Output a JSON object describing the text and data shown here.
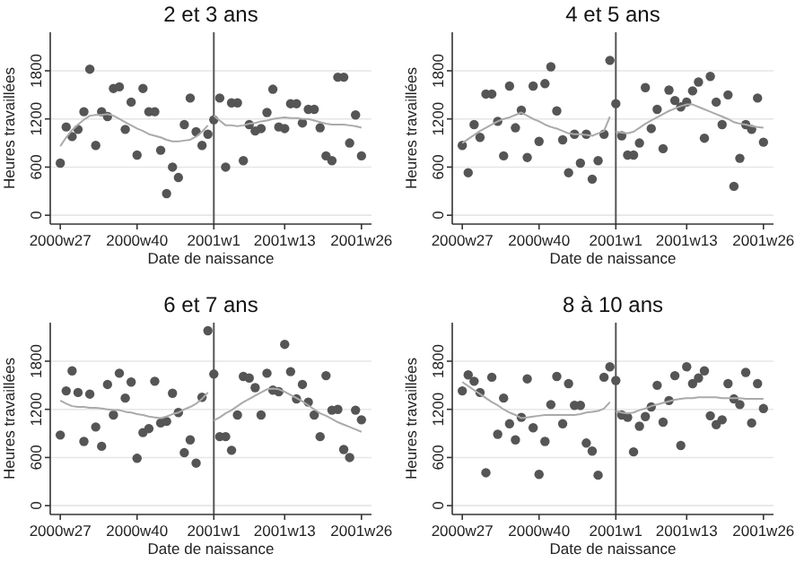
{
  "chart_data": [
    {
      "type": "scatter",
      "title": "2 et 3 ans",
      "xlabel": "Date de naissance",
      "ylabel": "Heures travaillées",
      "categories": [
        "2000w27",
        null,
        null,
        null,
        null,
        null,
        null,
        null,
        null,
        null,
        null,
        null,
        null,
        "2000w40",
        null,
        null,
        null,
        null,
        null,
        null,
        null,
        null,
        null,
        null,
        null,
        null,
        "2001w1",
        null,
        null,
        null,
        null,
        null,
        null,
        null,
        null,
        null,
        null,
        null,
        "2001w13",
        null,
        null,
        null,
        null,
        null,
        null,
        null,
        null,
        null,
        null,
        null,
        null,
        "2001w26"
      ],
      "ylim": [
        -110,
        2280
      ],
      "yticks": [
        0,
        600,
        1200,
        1800
      ],
      "grid": "y",
      "ref_lines": [
        {
          "axis": "x",
          "value": "2001w1",
          "color": "#555555"
        }
      ],
      "series": [
        {
          "color": "#555555",
          "marker": "circle",
          "values": [
            650,
            1100,
            980,
            1070,
            1290,
            1820,
            870,
            1290,
            1230,
            1580,
            1600,
            1070,
            1410,
            750,
            1580,
            1290,
            1290,
            810,
            270,
            600,
            470,
            1130,
            1460,
            1040,
            870,
            1010,
            1190,
            1460,
            600,
            1400,
            1400,
            680,
            1130,
            1050,
            1080,
            1280,
            1570,
            1100,
            1080,
            1390,
            1390,
            1150,
            1320,
            1320,
            1090,
            740,
            680,
            1720,
            1720,
            900,
            1250,
            740
          ]
        },
        {
          "type": "line",
          "color": "#aaaaaa",
          "marker": "none",
          "values": [
            860,
            970,
            1060,
            1130,
            1190,
            1240,
            1250,
            1250,
            1260,
            1240,
            1200,
            1160,
            1120,
            1080,
            1050,
            1010,
            990,
            970,
            940,
            920,
            920,
            930,
            940,
            980,
            1040,
            1120,
            null,
            null,
            null,
            null,
            null,
            null,
            null,
            null,
            null,
            null,
            null,
            null,
            null,
            null,
            null,
            null,
            null,
            null,
            null,
            null,
            null,
            null,
            null,
            null,
            null,
            null
          ]
        },
        {
          "type": "line",
          "color": "#aaaaaa",
          "marker": "none",
          "values": [
            null,
            null,
            null,
            null,
            null,
            null,
            null,
            null,
            null,
            null,
            null,
            null,
            null,
            null,
            null,
            null,
            null,
            null,
            null,
            null,
            null,
            null,
            null,
            null,
            null,
            null,
            1240,
            1180,
            1120,
            1120,
            1110,
            1120,
            1140,
            1150,
            1170,
            1180,
            1200,
            1210,
            1220,
            1210,
            1210,
            1200,
            1200,
            1180,
            1160,
            1140,
            1130,
            1130,
            1130,
            1120,
            1110,
            1090
          ]
        }
      ]
    },
    {
      "type": "scatter",
      "title": "4 et 5 ans",
      "xlabel": "Date de naissance",
      "ylabel": "Heures travaillées",
      "categories": [
        "2000w27",
        null,
        null,
        null,
        null,
        null,
        null,
        null,
        null,
        null,
        null,
        null,
        null,
        "2000w40",
        null,
        null,
        null,
        null,
        null,
        null,
        null,
        null,
        null,
        null,
        null,
        null,
        "2001w1",
        null,
        null,
        null,
        null,
        null,
        null,
        null,
        null,
        null,
        null,
        null,
        "2001w13",
        null,
        null,
        null,
        null,
        null,
        null,
        null,
        null,
        null,
        null,
        null,
        null,
        "2001w26"
      ],
      "ylim": [
        -110,
        2280
      ],
      "yticks": [
        0,
        600,
        1200,
        1800
      ],
      "grid": "y",
      "ref_lines": [
        {
          "axis": "x",
          "value": "2001w1",
          "color": "#555555"
        }
      ],
      "series": [
        {
          "color": "#555555",
          "marker": "circle",
          "values": [
            870,
            530,
            1130,
            970,
            1510,
            1510,
            1170,
            740,
            1610,
            1090,
            1310,
            720,
            1610,
            920,
            1640,
            1850,
            1300,
            940,
            530,
            1010,
            650,
            1010,
            450,
            680,
            1010,
            1930,
            1390,
            990,
            750,
            750,
            900,
            1590,
            1080,
            1320,
            830,
            1560,
            1430,
            1350,
            1410,
            1550,
            1660,
            960,
            1730,
            1410,
            1130,
            1500,
            360,
            710,
            1130,
            1070,
            1460,
            910
          ]
        },
        {
          "type": "line",
          "color": "#aaaaaa",
          "marker": "none",
          "values": [
            900,
            950,
            1000,
            1050,
            1090,
            1130,
            1170,
            1200,
            1220,
            1250,
            1280,
            1240,
            1200,
            1170,
            1130,
            1100,
            1080,
            1050,
            1020,
            1010,
            1010,
            1000,
            990,
            1020,
            1050,
            1230,
            null,
            null,
            null,
            null,
            null,
            null,
            null,
            null,
            null,
            null,
            null,
            null,
            null,
            null,
            null,
            null,
            null,
            null,
            null,
            null,
            null,
            null,
            null,
            null,
            null,
            null
          ]
        },
        {
          "type": "line",
          "color": "#aaaaaa",
          "marker": "none",
          "values": [
            null,
            null,
            null,
            null,
            null,
            null,
            null,
            null,
            null,
            null,
            null,
            null,
            null,
            null,
            null,
            null,
            null,
            null,
            null,
            null,
            null,
            null,
            null,
            null,
            null,
            null,
            1040,
            1030,
            1020,
            1040,
            1090,
            1140,
            1180,
            1220,
            1260,
            1300,
            1330,
            1360,
            1380,
            1380,
            1350,
            1320,
            1290,
            1260,
            1230,
            1200,
            1160,
            1140,
            1130,
            1110,
            1100,
            1090
          ]
        }
      ]
    },
    {
      "type": "scatter",
      "title": "6 et 7 ans",
      "xlabel": "Date de naissance",
      "ylabel": "Heures travaillées",
      "categories": [
        "2000w27",
        null,
        null,
        null,
        null,
        null,
        null,
        null,
        null,
        null,
        null,
        null,
        null,
        "2000w40",
        null,
        null,
        null,
        null,
        null,
        null,
        null,
        null,
        null,
        null,
        null,
        null,
        "2001w1",
        null,
        null,
        null,
        null,
        null,
        null,
        null,
        null,
        null,
        null,
        null,
        "2001w13",
        null,
        null,
        null,
        null,
        null,
        null,
        null,
        null,
        null,
        null,
        null,
        null,
        "2001w26"
      ],
      "ylim": [
        -110,
        2280
      ],
      "yticks": [
        0,
        600,
        1200,
        1800
      ],
      "grid": "y",
      "ref_lines": [
        {
          "axis": "x",
          "value": "2001w1",
          "color": "#555555"
        }
      ],
      "series": [
        {
          "color": "#555555",
          "marker": "circle",
          "values": [
            880,
            1430,
            1680,
            1410,
            800,
            1390,
            980,
            740,
            1510,
            1130,
            1650,
            1340,
            1540,
            590,
            910,
            960,
            1550,
            1030,
            1050,
            1400,
            1160,
            660,
            820,
            530,
            1350,
            2180,
            1640,
            860,
            860,
            690,
            1130,
            1610,
            1590,
            1470,
            1130,
            1650,
            1440,
            1420,
            2010,
            1670,
            1330,
            1510,
            1290,
            1130,
            860,
            1620,
            1190,
            1200,
            700,
            600,
            1190,
            1070
          ]
        },
        {
          "type": "line",
          "color": "#aaaaaa",
          "marker": "none",
          "values": [
            1310,
            1270,
            1240,
            1230,
            1230,
            1220,
            1220,
            1210,
            1200,
            1190,
            1190,
            1170,
            1160,
            1140,
            1130,
            1110,
            1100,
            1090,
            1110,
            1140,
            1160,
            1200,
            1230,
            1270,
            1330,
            1410,
            null,
            null,
            null,
            null,
            null,
            null,
            null,
            null,
            null,
            null,
            null,
            null,
            null,
            null,
            null,
            null,
            null,
            null,
            null,
            null,
            null,
            null,
            null,
            null,
            null,
            null
          ]
        },
        {
          "type": "line",
          "color": "#aaaaaa",
          "marker": "none",
          "values": [
            null,
            null,
            null,
            null,
            null,
            null,
            null,
            null,
            null,
            null,
            null,
            null,
            null,
            null,
            null,
            null,
            null,
            null,
            null,
            null,
            null,
            null,
            null,
            null,
            null,
            null,
            1060,
            1100,
            1150,
            1190,
            1240,
            1290,
            1330,
            1370,
            1410,
            1450,
            1460,
            1450,
            1420,
            1380,
            1340,
            1300,
            1250,
            1200,
            1150,
            1120,
            1080,
            1040,
            1010,
            980,
            950,
            920
          ]
        }
      ]
    },
    {
      "type": "scatter",
      "title": "8 à 10 ans",
      "xlabel": "Date de naissance",
      "ylabel": "Heures travaillées",
      "categories": [
        "2000w27",
        null,
        null,
        null,
        null,
        null,
        null,
        null,
        null,
        null,
        null,
        null,
        null,
        "2000w40",
        null,
        null,
        null,
        null,
        null,
        null,
        null,
        null,
        null,
        null,
        null,
        null,
        "2001w1",
        null,
        null,
        null,
        null,
        null,
        null,
        null,
        null,
        null,
        null,
        null,
        "2001w13",
        null,
        null,
        null,
        null,
        null,
        null,
        null,
        null,
        null,
        null,
        null,
        null,
        "2001w26"
      ],
      "ylim": [
        -110,
        2280
      ],
      "yticks": [
        0,
        600,
        1200,
        1800
      ],
      "grid": "y",
      "ref_lines": [
        {
          "axis": "x",
          "value": "2001w1",
          "color": "#555555"
        }
      ],
      "series": [
        {
          "color": "#555555",
          "marker": "circle",
          "values": [
            1430,
            1630,
            1550,
            1410,
            410,
            1600,
            890,
            1340,
            1020,
            820,
            1100,
            1580,
            970,
            390,
            800,
            1260,
            1610,
            1020,
            1520,
            1250,
            1250,
            780,
            680,
            380,
            1600,
            1730,
            1560,
            1130,
            1100,
            670,
            990,
            1110,
            1230,
            1500,
            1040,
            1310,
            1620,
            750,
            1730,
            1520,
            1590,
            1680,
            1120,
            1010,
            1070,
            1520,
            1330,
            1260,
            1660,
            1030,
            1520,
            1210
          ]
        },
        {
          "type": "line",
          "color": "#aaaaaa",
          "marker": "none",
          "values": [
            1540,
            1490,
            1440,
            1390,
            1340,
            1290,
            1250,
            1200,
            1160,
            1130,
            1090,
            1100,
            1110,
            1120,
            1130,
            1130,
            1130,
            1130,
            1130,
            1130,
            1140,
            1160,
            1170,
            1180,
            1210,
            1290,
            null,
            null,
            null,
            null,
            null,
            null,
            null,
            null,
            null,
            null,
            null,
            null,
            null,
            null,
            null,
            null,
            null,
            null,
            null,
            null,
            null,
            null,
            null,
            null,
            null,
            null
          ]
        },
        {
          "type": "line",
          "color": "#aaaaaa",
          "marker": "none",
          "values": [
            null,
            null,
            null,
            null,
            null,
            null,
            null,
            null,
            null,
            null,
            null,
            null,
            null,
            null,
            null,
            null,
            null,
            null,
            null,
            null,
            null,
            null,
            null,
            null,
            null,
            null,
            1180,
            1160,
            1150,
            1160,
            1190,
            1210,
            1240,
            1260,
            1280,
            1300,
            1320,
            1330,
            1340,
            1340,
            1350,
            1350,
            1350,
            1350,
            1340,
            1340,
            1340,
            1340,
            1330,
            1330,
            1330,
            1330
          ]
        }
      ]
    }
  ]
}
